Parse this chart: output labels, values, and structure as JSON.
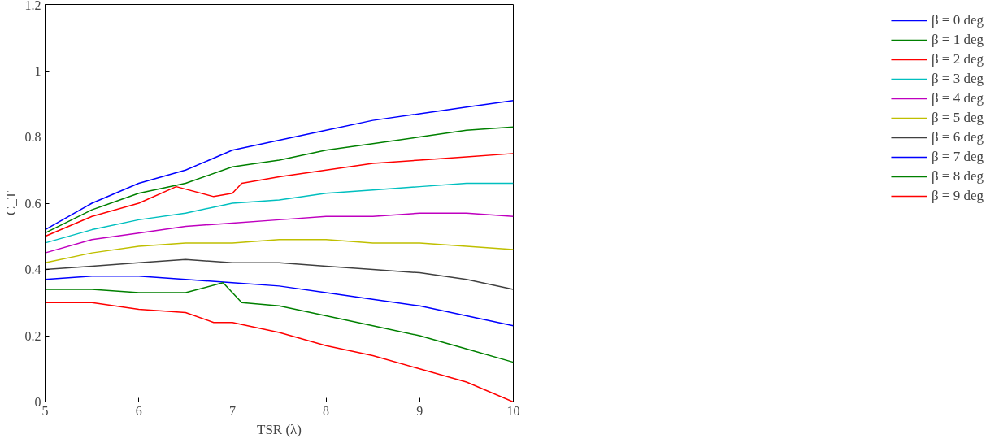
{
  "chart_data": {
    "type": "line",
    "xlabel": "TSR (λ)",
    "ylabel": "C_T",
    "xlim": [
      5,
      10
    ],
    "ylim": [
      0,
      1.2
    ],
    "xticks": [
      5,
      6,
      7,
      8,
      9,
      10
    ],
    "yticks": [
      0,
      0.2,
      0.4,
      0.6,
      0.8,
      1,
      1.2
    ],
    "grid": false,
    "legend": "right",
    "line_style": "solid",
    "marker": "none",
    "x": [
      5,
      5.5,
      6,
      6.5,
      7,
      7.5,
      8,
      8.5,
      9,
      9.5,
      10
    ],
    "series": [
      {
        "name": "β = 0 deg",
        "color": "#0000ff",
        "values": [
          0.52,
          0.6,
          0.66,
          0.7,
          0.76,
          0.79,
          0.82,
          0.85,
          0.87,
          0.89,
          0.91
        ]
      },
      {
        "name": "β = 1 deg",
        "color": "#008000",
        "values": [
          0.51,
          0.58,
          0.63,
          0.66,
          0.71,
          0.73,
          0.76,
          0.78,
          0.8,
          0.82,
          0.83
        ]
      },
      {
        "name": "β = 2 deg",
        "color": "#ff0000",
        "x": [
          5,
          5.5,
          6,
          6.4,
          6.8,
          7,
          7.1,
          7.5,
          8,
          8.5,
          9,
          9.5,
          10
        ],
        "values": [
          0.5,
          0.56,
          0.6,
          0.65,
          0.62,
          0.63,
          0.66,
          0.68,
          0.7,
          0.72,
          0.73,
          0.74,
          0.75
        ]
      },
      {
        "name": "β = 3 deg",
        "color": "#00bfbf",
        "values": [
          0.48,
          0.52,
          0.55,
          0.57,
          0.6,
          0.61,
          0.63,
          0.64,
          0.65,
          0.66,
          0.66
        ]
      },
      {
        "name": "β = 4 deg",
        "color": "#bf00bf",
        "values": [
          0.45,
          0.49,
          0.51,
          0.53,
          0.54,
          0.55,
          0.56,
          0.56,
          0.57,
          0.57,
          0.56
        ]
      },
      {
        "name": "β = 5 deg",
        "color": "#bfbf00",
        "values": [
          0.42,
          0.45,
          0.47,
          0.48,
          0.48,
          0.49,
          0.49,
          0.48,
          0.48,
          0.47,
          0.46
        ]
      },
      {
        "name": "β = 6 deg",
        "color": "#404040",
        "values": [
          0.4,
          0.41,
          0.42,
          0.43,
          0.42,
          0.42,
          0.41,
          0.4,
          0.39,
          0.37,
          0.34
        ]
      },
      {
        "name": "β = 7 deg",
        "color": "#0000ff",
        "values": [
          0.37,
          0.38,
          0.38,
          0.37,
          0.36,
          0.35,
          0.33,
          0.31,
          0.29,
          0.26,
          0.23
        ]
      },
      {
        "name": "β = 8 deg",
        "color": "#008000",
        "x": [
          5,
          5.5,
          6,
          6.5,
          6.9,
          7.1,
          7.5,
          8,
          8.5,
          9,
          9.5,
          10
        ],
        "values": [
          0.34,
          0.34,
          0.33,
          0.33,
          0.36,
          0.3,
          0.29,
          0.26,
          0.23,
          0.2,
          0.16,
          0.12
        ]
      },
      {
        "name": "β = 9 deg",
        "color": "#ff0000",
        "x": [
          5,
          5.5,
          6,
          6.5,
          6.8,
          7,
          7.5,
          8,
          8.5,
          9,
          9.5,
          10
        ],
        "values": [
          0.3,
          0.3,
          0.28,
          0.27,
          0.24,
          0.24,
          0.21,
          0.17,
          0.14,
          0.1,
          0.06,
          0.0
        ]
      }
    ]
  }
}
